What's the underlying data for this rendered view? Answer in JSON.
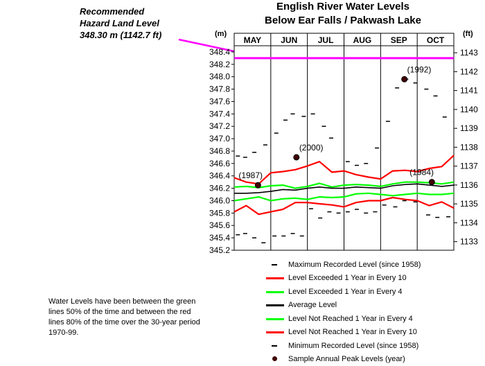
{
  "annotation": {
    "line1": "Recommended",
    "line2": "Hazard Land Level",
    "line3": "348.30 m (1142.7 ft)"
  },
  "title": {
    "line1": "English River Water Levels",
    "line2": "Below Ear Falls / Pakwash Lake"
  },
  "footnote": "Water Levels have been between the green lines 50% of the time and between the red lines 80% of the time over the 30-year period 1970-99.",
  "legend": [
    {
      "label": "Maximum Recorded Level (since 1958)",
      "kind": "dash",
      "color": "#000000"
    },
    {
      "label": "Level Exceeded 1 Year in Every 10",
      "kind": "line",
      "color": "#ff0000"
    },
    {
      "label": "Level Exceeded 1 Year in Every 4",
      "kind": "line",
      "color": "#00ff00"
    },
    {
      "label": "Average Level",
      "kind": "line",
      "color": "#000000"
    },
    {
      "label": "Level Not Reached 1 Year in Every 4",
      "kind": "line",
      "color": "#00ff00"
    },
    {
      "label": "Level Not Reached 1 Year in Every 10",
      "kind": "line",
      "color": "#ff0000"
    },
    {
      "label": "Minimum Recorded Level (since 1958)",
      "kind": "dash",
      "color": "#000000"
    },
    {
      "label": "Sample Annual Peak Levels (year)",
      "kind": "dot",
      "color": "#400000"
    }
  ],
  "chart_data": {
    "type": "line",
    "months": [
      "MAY",
      "JUN",
      "JUL",
      "AUG",
      "SEP",
      "OCT"
    ],
    "y_left_unit": "(m)",
    "y_right_unit": "(ft)",
    "ylim_m": [
      345.2,
      348.5
    ],
    "left_ticks": [
      345.2,
      345.4,
      345.6,
      345.8,
      346.0,
      346.2,
      346.4,
      346.6,
      346.8,
      347.0,
      347.2,
      347.4,
      347.6,
      347.8,
      348.0,
      348.2,
      348.4
    ],
    "right_ticks_ft": [
      1133,
      1134,
      1135,
      1136,
      1137,
      1138,
      1139,
      1140,
      1141,
      1142,
      1143
    ],
    "x_period": [
      5,
      11
    ],
    "hazard_level": 348.3,
    "hazard_color": "#ff00ff",
    "series": [
      {
        "name": "Level Exceeded 1 Year in Every 10",
        "color": "#ff0000",
        "width": 2.2,
        "x": [
          5.0,
          5.33,
          5.67,
          6.0,
          6.33,
          6.67,
          7.0,
          7.33,
          7.67,
          8.0,
          8.33,
          8.67,
          9.0,
          9.33,
          9.67,
          10.0,
          10.33,
          10.67,
          11.0
        ],
        "y": [
          346.37,
          346.3,
          346.27,
          346.45,
          346.47,
          346.5,
          346.56,
          346.63,
          346.46,
          346.48,
          346.42,
          346.38,
          346.35,
          346.48,
          346.49,
          346.47,
          346.52,
          346.55,
          346.73
        ]
      },
      {
        "name": "Level Exceeded 1 Year in Every 4",
        "color": "#00ff00",
        "width": 2.2,
        "x": [
          5.0,
          5.33,
          5.67,
          6.0,
          6.33,
          6.67,
          7.0,
          7.33,
          7.67,
          8.0,
          8.33,
          8.67,
          9.0,
          9.33,
          9.67,
          10.0,
          10.33,
          10.67,
          11.0
        ],
        "y": [
          346.22,
          346.23,
          346.21,
          346.24,
          346.25,
          346.2,
          346.23,
          346.28,
          346.22,
          346.25,
          346.26,
          346.25,
          346.23,
          346.27,
          346.3,
          346.3,
          346.29,
          346.27,
          346.3
        ]
      },
      {
        "name": "Average Level",
        "color": "#000000",
        "width": 1.6,
        "x": [
          5.0,
          5.33,
          5.67,
          6.0,
          6.33,
          6.67,
          7.0,
          7.33,
          7.67,
          8.0,
          8.33,
          8.67,
          9.0,
          9.33,
          9.67,
          10.0,
          10.33,
          10.67,
          11.0
        ],
        "y": [
          346.12,
          346.12,
          346.13,
          346.15,
          346.18,
          346.17,
          346.2,
          346.22,
          346.2,
          346.2,
          346.22,
          346.21,
          346.2,
          346.24,
          346.26,
          346.27,
          346.25,
          346.23,
          346.25
        ]
      },
      {
        "name": "Level Not Reached 1 Year in Every 4",
        "color": "#00ff00",
        "width": 2.2,
        "x": [
          5.0,
          5.33,
          5.67,
          6.0,
          6.33,
          6.67,
          7.0,
          7.33,
          7.67,
          8.0,
          8.33,
          8.67,
          9.0,
          9.33,
          9.67,
          10.0,
          10.33,
          10.67,
          11.0
        ],
        "y": [
          346.0,
          346.03,
          346.06,
          346.0,
          346.03,
          346.04,
          346.02,
          346.06,
          346.05,
          346.06,
          346.11,
          346.12,
          346.1,
          346.08,
          346.1,
          346.12,
          346.1,
          346.1,
          346.12
        ]
      },
      {
        "name": "Level Not Reached 1 Year in Every 10",
        "color": "#ff0000",
        "width": 2.2,
        "x": [
          5.0,
          5.33,
          5.67,
          6.0,
          6.33,
          6.67,
          7.0,
          7.33,
          7.67,
          8.0,
          8.33,
          8.67,
          9.0,
          9.33,
          9.67,
          10.0,
          10.33,
          10.67,
          11.0
        ],
        "y": [
          345.82,
          345.92,
          345.78,
          345.82,
          345.86,
          345.97,
          345.97,
          345.95,
          345.93,
          345.9,
          345.97,
          346.0,
          346.0,
          346.05,
          346.02,
          346.0,
          345.92,
          345.98,
          345.88
        ]
      }
    ],
    "max_recorded": {
      "x": [
        5.1,
        5.3,
        5.55,
        5.85,
        6.15,
        6.4,
        6.6,
        6.9,
        7.15,
        7.45,
        7.65,
        8.1,
        8.35,
        8.6,
        8.9,
        9.2,
        9.45,
        9.7,
        9.95,
        10.25,
        10.5,
        10.75
      ],
      "y": [
        346.72,
        346.7,
        346.78,
        346.9,
        347.09,
        347.3,
        347.4,
        347.36,
        347.4,
        347.2,
        347.01,
        346.63,
        346.57,
        346.6,
        346.85,
        347.28,
        347.82,
        347.96,
        347.9,
        347.8,
        347.69,
        347.35
      ]
    },
    "min_recorded": {
      "x": [
        5.1,
        5.3,
        5.55,
        5.8,
        6.1,
        6.35,
        6.6,
        6.85,
        7.1,
        7.35,
        7.6,
        7.85,
        8.1,
        8.35,
        8.6,
        8.85,
        9.1,
        9.4,
        9.65,
        9.95,
        10.3,
        10.55,
        10.85
      ],
      "y": [
        345.45,
        345.47,
        345.4,
        345.32,
        345.43,
        345.43,
        345.47,
        345.43,
        345.87,
        345.72,
        345.82,
        345.8,
        345.82,
        345.86,
        345.8,
        345.82,
        345.93,
        345.9,
        346.0,
        345.98,
        345.77,
        345.73,
        345.74
      ]
    },
    "peaks": [
      {
        "year": "(1987)",
        "x": 5.65,
        "y": 346.25,
        "label_dx": -28,
        "label_dy": -10
      },
      {
        "year": "(2000)",
        "x": 6.7,
        "y": 346.7,
        "label_dx": 4,
        "label_dy": -10
      },
      {
        "year": "(1992)",
        "x": 9.65,
        "y": 347.96,
        "label_dx": 4,
        "label_dy": -10
      },
      {
        "year": "(1984)",
        "x": 10.4,
        "y": 346.3,
        "label_dx": -32,
        "label_dy": -10
      }
    ]
  }
}
